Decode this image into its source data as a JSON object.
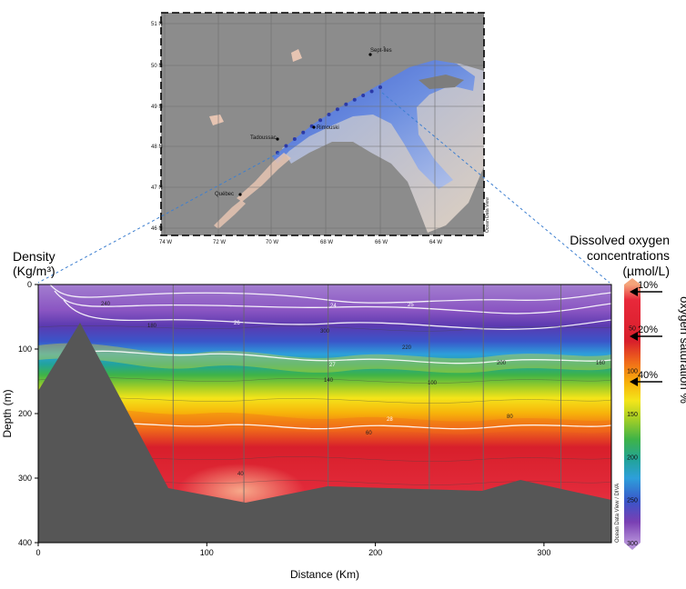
{
  "map": {
    "lat_ticks": [
      "51 N",
      "50 N",
      "49 N",
      "48 N",
      "47 N",
      "46 N"
    ],
    "lon_ticks": [
      "74 W",
      "72 W",
      "70 W",
      "68 W",
      "66 W",
      "64 W"
    ],
    "places": [
      "Sept-Îles",
      "Rimouski",
      "Tadoussac",
      "Québec"
    ],
    "credit": "Ocean Data View",
    "station_count": 13
  },
  "labels": {
    "density_title": "Density",
    "density_unit": "(Kg/m³)",
    "oxygen_title_1": "Dissolved oxygen",
    "oxygen_title_2": "concentrations",
    "oxygen_unit": "(µmol/L)",
    "saturation_label": "oxygen saturation %",
    "credit": "Ocean Data View / DIVA",
    "arrows": [
      "10%",
      "20%",
      "40%"
    ]
  },
  "colors": {
    "land": "#555555",
    "map_bg": "#8c8c8c",
    "station": "#2b3aa8",
    "guide_line": "#3d7fd0"
  },
  "chart_data": {
    "type": "heatmap",
    "xlabel": "Distance (Km)",
    "ylabel": "Depth (m)",
    "xlim": [
      0,
      340
    ],
    "ylim": [
      400,
      0
    ],
    "x_ticks": [
      0,
      100,
      200,
      300
    ],
    "y_ticks": [
      0,
      100,
      200,
      300,
      400
    ],
    "colorbar": {
      "ticks": [
        50,
        100,
        150,
        200,
        250,
        300
      ],
      "range": [
        0,
        300
      ],
      "colors": [
        "#f4a47a",
        "#e8283a",
        "#d81f2b",
        "#f06a1a",
        "#f7b10a",
        "#f4e51a",
        "#a6cf25",
        "#3eb348",
        "#22a39a",
        "#2d9fdb",
        "#3a55c9",
        "#7a3fb3",
        "#a37ed0"
      ]
    },
    "oxygen_contours": [
      240,
      180,
      300,
      220,
      140,
      200,
      160,
      100,
      80,
      60,
      40
    ],
    "density_contours": [
      24,
      25,
      26,
      27,
      28
    ],
    "station_distances_km": [
      80,
      122,
      172,
      232,
      264,
      310
    ]
  }
}
